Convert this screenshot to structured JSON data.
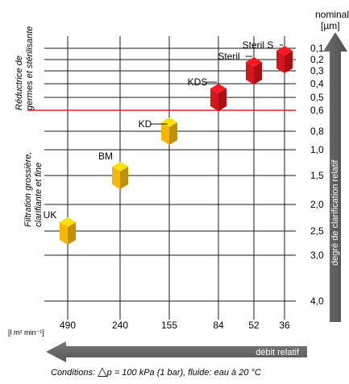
{
  "chart_data": {
    "type": "scatter",
    "x_axis": {
      "unit": "[l m² min⁻¹]",
      "ticks": [
        "490",
        "240",
        "155",
        "84",
        "52",
        "36"
      ],
      "arrow_label": "débit relatif"
    },
    "y_axis": {
      "unit_line1": "nominal",
      "unit_line2": "[µm]",
      "ticks": [
        "0,1",
        "0,2",
        "0,3",
        "0,4",
        "0,5",
        "0,6",
        "0,8",
        "1,0",
        "1,5",
        "2,0",
        "2,5",
        "3,0",
        "4,0"
      ],
      "arrow_label": "degré de clarification relatif"
    },
    "regions": [
      {
        "line1": "Réductrice de",
        "line2": "germes et stérilisante"
      },
      {
        "line1": "Filtration grossière,",
        "line2": "clarifiante et fine"
      }
    ],
    "threshold": {
      "value": "0,6",
      "color": "#e0201c"
    },
    "series": [
      {
        "label": "UK",
        "x": "490",
        "y": "2,5",
        "color": "#f5b800"
      },
      {
        "label": "BM",
        "x": "240",
        "y": "1,5",
        "color": "#f5b800"
      },
      {
        "label": "KD",
        "x": "155",
        "y": "0,8",
        "color": "#f5b800"
      },
      {
        "label": "KDS",
        "x": "84",
        "y": "0,5",
        "color": "#d8141c"
      },
      {
        "label": "Steril",
        "x": "52",
        "y": "0,3",
        "color": "#d8141c"
      },
      {
        "label": "Steril S",
        "x": "36",
        "y": "0,2",
        "color": "#d8141c"
      }
    ],
    "footnote": {
      "prefix": "Conditions: ",
      "symbol": "△",
      "text": "p = 100 kPa (1 bar), fluide: eau à 20 °C"
    }
  }
}
